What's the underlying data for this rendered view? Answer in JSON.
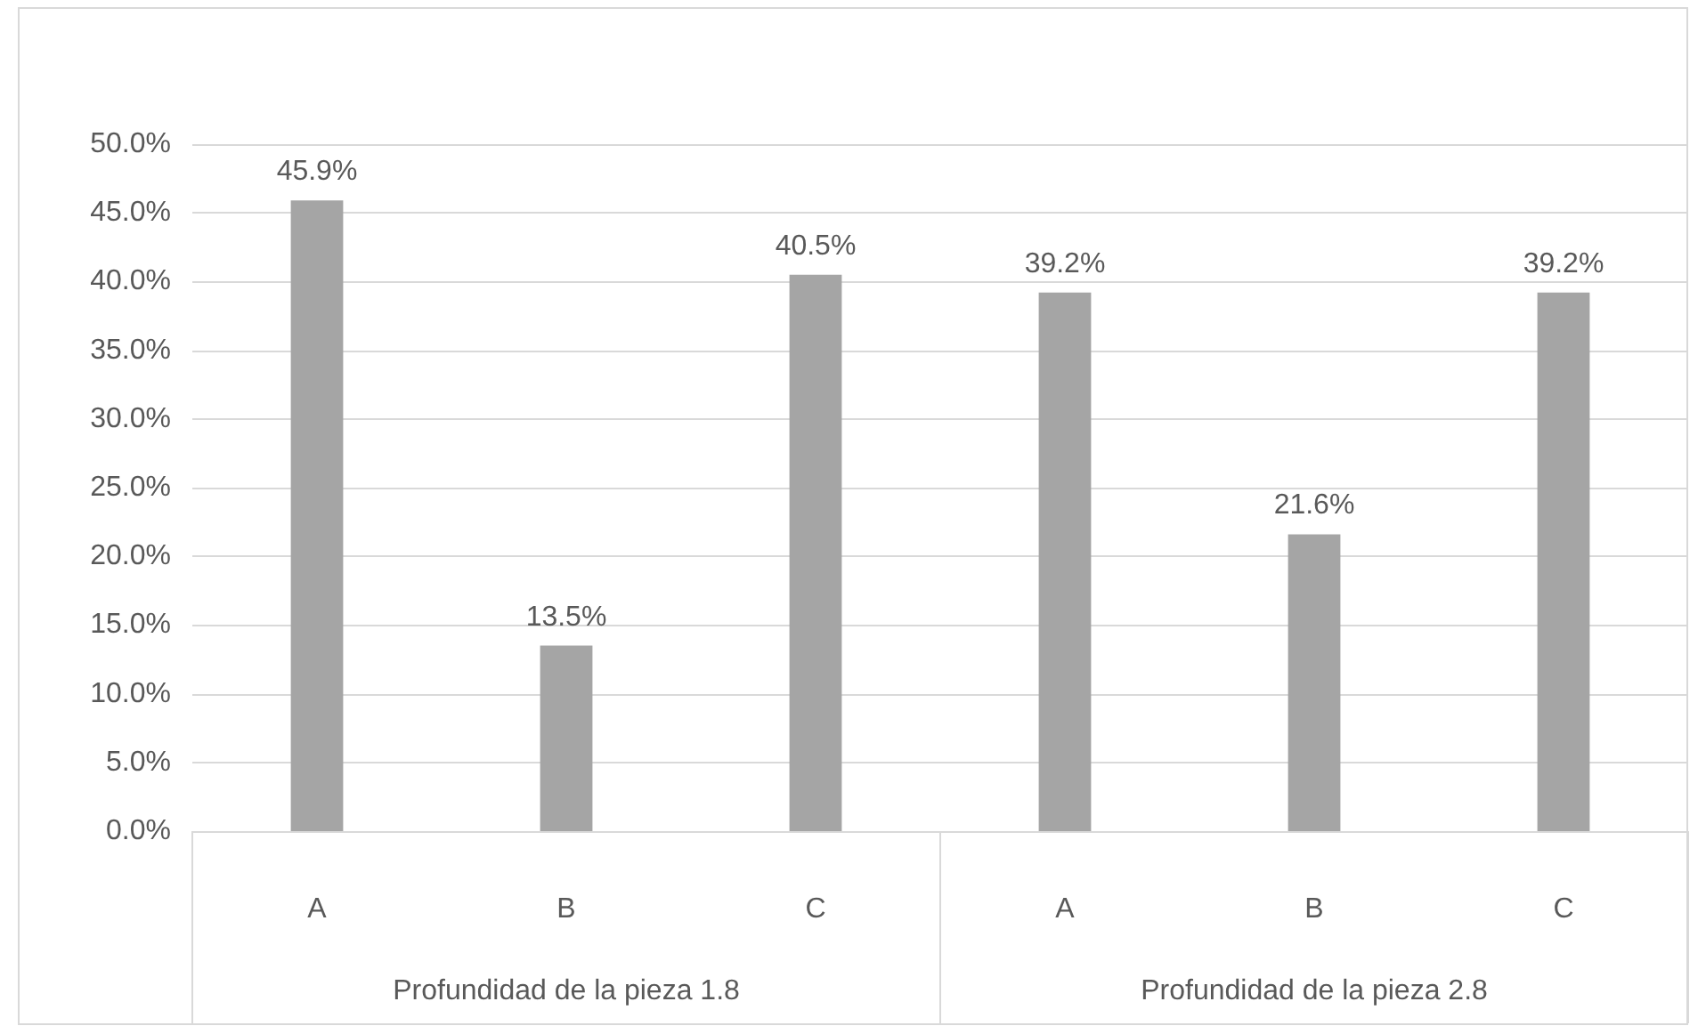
{
  "chart_data": {
    "type": "bar",
    "categories": [
      "A",
      "B",
      "C",
      "A",
      "B",
      "C"
    ],
    "values": [
      45.9,
      13.5,
      40.5,
      39.2,
      21.6,
      39.2
    ],
    "value_labels": [
      "45.9%",
      "13.5%",
      "40.5%",
      "39.2%",
      "21.6%",
      "39.2%"
    ],
    "color": "#a5a5a5",
    "annotations": [
      "Profundidad de la pieza 1.8",
      "Profundidad de la pieza 2.8"
    ],
    "ylim": [
      0,
      50
    ],
    "yticks": [
      {
        "value": 0,
        "label": "0.0%"
      },
      {
        "value": 5,
        "label": "5.0%"
      },
      {
        "value": 10,
        "label": "10.0%"
      },
      {
        "value": 15,
        "label": "15.0%"
      },
      {
        "value": 20,
        "label": "20.0%"
      },
      {
        "value": 25,
        "label": "25.0%"
      },
      {
        "value": 30,
        "label": "30.0%"
      },
      {
        "value": 35,
        "label": "35.0%"
      },
      {
        "value": 40,
        "label": "40.0%"
      },
      {
        "value": 45,
        "label": "45.0%"
      },
      {
        "value": 50,
        "label": "50.0%"
      }
    ],
    "grid": "y"
  }
}
